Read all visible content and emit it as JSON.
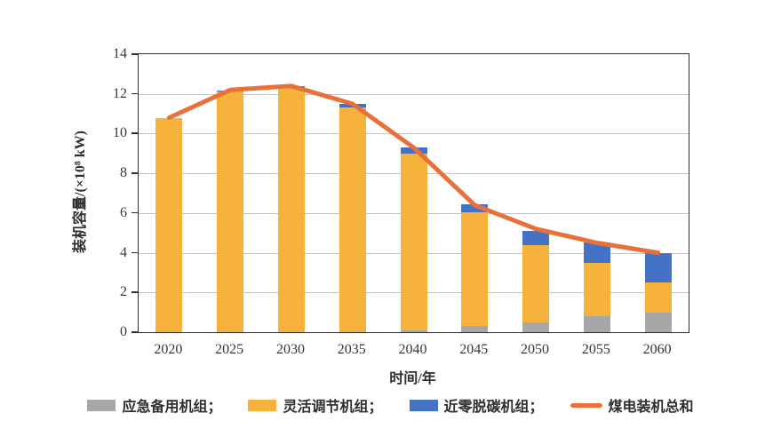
{
  "chart_data": {
    "type": "bar",
    "stacked": true,
    "overlay": "line",
    "categories": [
      "2020",
      "2025",
      "2030",
      "2035",
      "2040",
      "2045",
      "2050",
      "2055",
      "2060"
    ],
    "series": [
      {
        "name": "应急备用机组",
        "kind": "bar",
        "color": "#A7A7A7",
        "values": [
          0,
          0,
          0,
          0,
          0.1,
          0.3,
          0.5,
          0.8,
          1.0
        ]
      },
      {
        "name": "灵活调节机组",
        "kind": "bar",
        "color": "#F7B23C",
        "values": [
          10.8,
          12.1,
          12.3,
          11.3,
          8.9,
          5.75,
          3.9,
          2.7,
          1.5
        ]
      },
      {
        "name": "近零脱碳机组",
        "kind": "bar",
        "color": "#4472C4",
        "values": [
          0,
          0.05,
          0.1,
          0.2,
          0.3,
          0.4,
          0.7,
          1.0,
          1.5
        ]
      },
      {
        "name": "煤电装机总和",
        "kind": "line",
        "color": "#E8713A",
        "values": [
          10.8,
          12.2,
          12.4,
          11.5,
          9.3,
          6.4,
          5.2,
          4.5,
          4.0
        ]
      }
    ],
    "xlabel": "时间/年",
    "ylabel": "装机容量/(×10⁸ kW)",
    "ylim": [
      0,
      14
    ],
    "yticks": [
      0,
      2,
      4,
      6,
      8,
      10,
      12,
      14
    ],
    "grid": "horizontal-only",
    "gridline_color": "#c2c2c2",
    "axis_box_color": "#2e2e2e",
    "legend_position": "bottom"
  },
  "legend": {
    "items": [
      {
        "label": "应急备用机组；",
        "swatch": "rect",
        "color": "#A7A7A7"
      },
      {
        "label": "灵活调节机组；",
        "swatch": "rect",
        "color": "#F7B23C"
      },
      {
        "label": "近零脱碳机组；",
        "swatch": "rect",
        "color": "#4472C4"
      },
      {
        "label": "煤电装机总和",
        "swatch": "line",
        "color": "#E8713A"
      }
    ]
  }
}
